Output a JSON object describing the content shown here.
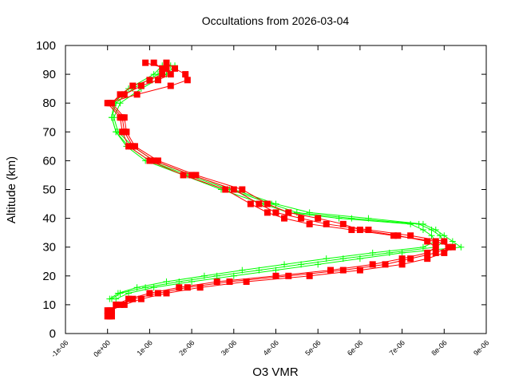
{
  "chart_data": {
    "type": "line",
    "title": "Occultations from 2026-03-04",
    "xlabel": "O3 VMR",
    "ylabel": "Altitude (km)",
    "xlim": [
      -1e-06,
      9e-06
    ],
    "ylim": [
      0,
      100
    ],
    "x_ticks": [
      "-1e-06",
      "0e+00",
      "1e-06",
      "2e-06",
      "3e-06",
      "4e-06",
      "5e-06",
      "6e-06",
      "7e-06",
      "8e-06",
      "9e-06"
    ],
    "x_tick_values": [
      -1e-06,
      0,
      1e-06,
      2e-06,
      3e-06,
      4e-06,
      5e-06,
      6e-06,
      7e-06,
      8e-06,
      9e-06
    ],
    "y_ticks": [
      "0",
      "10",
      "20",
      "30",
      "40",
      "50",
      "60",
      "70",
      "80",
      "90",
      "100"
    ],
    "y_tick_values": [
      0,
      10,
      20,
      30,
      40,
      50,
      60,
      70,
      80,
      90,
      100
    ],
    "grid": false,
    "legend": "none",
    "series": [
      {
        "color": "#00ff00",
        "marker": "plus",
        "profiles": [
          {
            "altitude": [
              12,
              14,
              16,
              18,
              20,
              22,
              24,
              26,
              28,
              30,
              32,
              34,
              36,
              38,
              40,
              42,
              45,
              50,
              55,
              60,
              65,
              70,
              75,
              80,
              85,
              90,
              93
            ],
            "vmr": [
              1e-07,
              3e-07,
              9e-07,
              1.7e-06,
              2.6e-06,
              3.6e-06,
              4.6e-06,
              5.6e-06,
              6.7e-06,
              7.8e-06,
              8e-06,
              7.9e-06,
              7.7e-06,
              7.4e-06,
              5.8e-06,
              4.5e-06,
              3.9e-06,
              2.9e-06,
              1.9e-06,
              1e-06,
              5e-07,
              2e-07,
              1e-07,
              2e-07,
              6e-07,
              1.2e-06,
              1.5e-06
            ]
          },
          {
            "altitude": [
              12,
              14,
              16,
              18,
              20,
              22,
              24,
              26,
              28,
              30,
              32,
              34,
              36,
              38,
              40,
              42,
              45,
              50,
              55,
              60,
              65,
              70,
              75,
              80,
              85,
              90,
              93
            ],
            "vmr": [
              2e-07,
              5e-07,
              1.1e-06,
              2e-06,
              3e-06,
              4e-06,
              5e-06,
              6e-06,
              7e-06,
              8.4e-06,
              8.2e-06,
              8e-06,
              7.8e-06,
              7.5e-06,
              6.2e-06,
              4.8e-06,
              4e-06,
              3e-06,
              2e-06,
              1.1e-06,
              6e-07,
              2.5e-07,
              1.5e-07,
              3e-07,
              8e-07,
              1.4e-06,
              1.6e-06
            ]
          },
          {
            "altitude": [
              12,
              14,
              16,
              18,
              20,
              22,
              24,
              26,
              28,
              30,
              32,
              34,
              36,
              38,
              40,
              42,
              45,
              50,
              55,
              60,
              65,
              70,
              75,
              80,
              85,
              90,
              93
            ],
            "vmr": [
              5e-08,
              2.5e-07,
              7e-07,
              1.4e-06,
              2.3e-06,
              3.2e-06,
              4.2e-06,
              5.2e-06,
              6.3e-06,
              7.5e-06,
              7.8e-06,
              7.7e-06,
              7.5e-06,
              7.2e-06,
              5.5e-06,
              4.3e-06,
              3.7e-06,
              2.7e-06,
              1.8e-06,
              9e-07,
              4.5e-07,
              2e-07,
              1e-07,
              1.5e-07,
              5e-07,
              1.1e-06,
              1.3e-06
            ]
          }
        ]
      },
      {
        "color": "#ff0000",
        "marker": "square",
        "profiles": [
          {
            "altitude": [
              6,
              8,
              10,
              12,
              14,
              16,
              18,
              20,
              22,
              24,
              26,
              28,
              30,
              32,
              34,
              36,
              38,
              40,
              42,
              45,
              50,
              55,
              60,
              65,
              70,
              75,
              80,
              83,
              86,
              88,
              90,
              92,
              94
            ],
            "vmr": [
              5e-08,
              0,
              3e-07,
              6e-07,
              1.2e-06,
              1.9e-06,
              2.9e-06,
              4.3e-06,
              5.6e-06,
              6.6e-06,
              7.2e-06,
              7.8e-06,
              8.1e-06,
              8e-06,
              7.2e-06,
              6.2e-06,
              5.2e-06,
              4.6e-06,
              4e-06,
              3.6e-06,
              3e-06,
              2e-06,
              1.1e-06,
              6e-07,
              4e-07,
              3.5e-07,
              5e-08,
              4e-07,
              8e-07,
              1.2e-06,
              1.5e-06,
              1.3e-06,
              1.1e-06
            ]
          },
          {
            "altitude": [
              6,
              8,
              10,
              12,
              14,
              16,
              18,
              20,
              22,
              24,
              26,
              28,
              30,
              32,
              34,
              36,
              38,
              40,
              42,
              45,
              50,
              55,
              60,
              65,
              70,
              75,
              80,
              83,
              86,
              88,
              90,
              92,
              94
            ],
            "vmr": [
              1e-07,
              5e-08,
              4e-07,
              8e-07,
              1.4e-06,
              2.2e-06,
              3.3e-06,
              4.8e-06,
              6e-06,
              7e-06,
              7.6e-06,
              8e-06,
              8.2e-06,
              7.8e-06,
              6.8e-06,
              5.8e-06,
              4.8e-06,
              4.2e-06,
              3.8e-06,
              3.4e-06,
              2.8e-06,
              1.8e-06,
              1e-06,
              5e-07,
              3.5e-07,
              3e-07,
              0,
              7e-07,
              1.5e-06,
              1.9e-06,
              1.85e-06,
              1.6e-06,
              1.4e-06
            ]
          },
          {
            "altitude": [
              6,
              8,
              10,
              12,
              14,
              16,
              18,
              20,
              22,
              24,
              26,
              28,
              30,
              32,
              34,
              36,
              38,
              40,
              42,
              45,
              50,
              55,
              60,
              65,
              70,
              75,
              80,
              83,
              86,
              88,
              90,
              92,
              94
            ],
            "vmr": [
              0,
              1e-07,
              2e-07,
              5e-07,
              1e-06,
              1.7e-06,
              2.6e-06,
              4e-06,
              5.3e-06,
              6.3e-06,
              7e-06,
              7.6e-06,
              7.8e-06,
              7.6e-06,
              6.9e-06,
              6e-06,
              5.6e-06,
              5e-06,
              4.3e-06,
              3.8e-06,
              3.2e-06,
              2.1e-06,
              1.2e-06,
              6.5e-07,
              4.5e-07,
              4e-07,
              1e-07,
              3e-07,
              6e-07,
              1e-06,
              1.3e-06,
              1.4e-06,
              9e-07
            ]
          }
        ]
      }
    ]
  }
}
